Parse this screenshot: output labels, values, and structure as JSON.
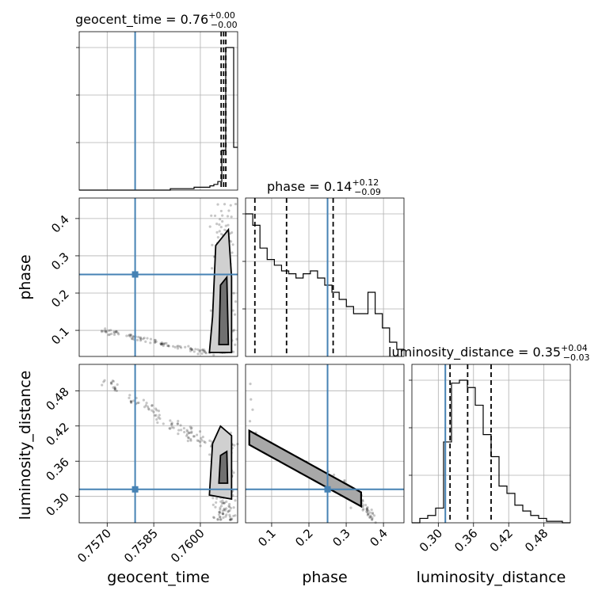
{
  "chart_data": {
    "type": "corner",
    "parameters": [
      "geocent_time",
      "phase",
      "luminosity_distance"
    ],
    "truths": {
      "geocent_time": 0.7579,
      "phase": 0.25,
      "luminosity_distance": 0.312
    },
    "colors": {
      "truth": "#4682b4",
      "hist": "#000000",
      "grid": "#b0b0b0"
    },
    "titles": [
      {
        "param": "geocent_time",
        "text": "geocent_time = 0.76",
        "sup": "+0.00",
        "sub": "−0.00"
      },
      {
        "param": "phase",
        "text": "phase = 0.14",
        "sup": "+0.12",
        "sub": "−0.09"
      },
      {
        "param": "luminosity_distance",
        "text": "luminosity_distance = 0.35",
        "sup": "+0.04",
        "sub": "−0.03"
      }
    ],
    "quantiles": {
      "geocent_time": [
        0.76067,
        0.76075,
        0.76082
      ],
      "phase": [
        0.055,
        0.14,
        0.265
      ],
      "luminosity_distance": [
        0.32,
        0.35,
        0.39
      ]
    },
    "ranges": {
      "geocent_time": [
        0.7561,
        0.7612
      ],
      "phase": [
        0.03,
        0.455
      ],
      "luminosity_distance": [
        0.255,
        0.525
      ]
    },
    "ticks": {
      "geocent_time": [
        0.757,
        0.7585,
        0.76
      ],
      "phase": [
        0.1,
        0.2,
        0.3,
        0.4
      ],
      "luminosity_distance": [
        0.3,
        0.36,
        0.42,
        0.48
      ]
    },
    "tick_labels": {
      "geocent_time": [
        "0.7570",
        "0.7585",
        "0.7600"
      ],
      "phase": [
        "0.1",
        "0.2",
        "0.3",
        "0.4"
      ],
      "luminosity_distance": [
        "0.30",
        "0.36",
        "0.42",
        "0.48"
      ]
    },
    "hist": {
      "geocent_time": {
        "edges_range": [
          0.7561,
          0.7612
        ],
        "counts": [
          0,
          0,
          0,
          0,
          0,
          0,
          0,
          0,
          0,
          0,
          0,
          0,
          0,
          0,
          0,
          0,
          0,
          0,
          0,
          0,
          0,
          0,
          0,
          1,
          1,
          1,
          1,
          1,
          1,
          2,
          2,
          2,
          2,
          3,
          4,
          6,
          28,
          100,
          100,
          30
        ]
      },
      "phase": {
        "edges_range": [
          0.03,
          0.455
        ],
        "counts": [
          100,
          92,
          76,
          68,
          64,
          60,
          58,
          55,
          58,
          60,
          55,
          50,
          45,
          40,
          35,
          30,
          30,
          45,
          30,
          20,
          10,
          5
        ]
      },
      "luminosity_distance": {
        "edges_range": [
          0.255,
          0.525
        ],
        "counts": [
          0,
          3,
          5,
          10,
          55,
          95,
          97,
          92,
          80,
          60,
          45,
          25,
          20,
          12,
          8,
          5,
          3,
          1,
          1,
          0
        ]
      }
    },
    "grid": true
  }
}
